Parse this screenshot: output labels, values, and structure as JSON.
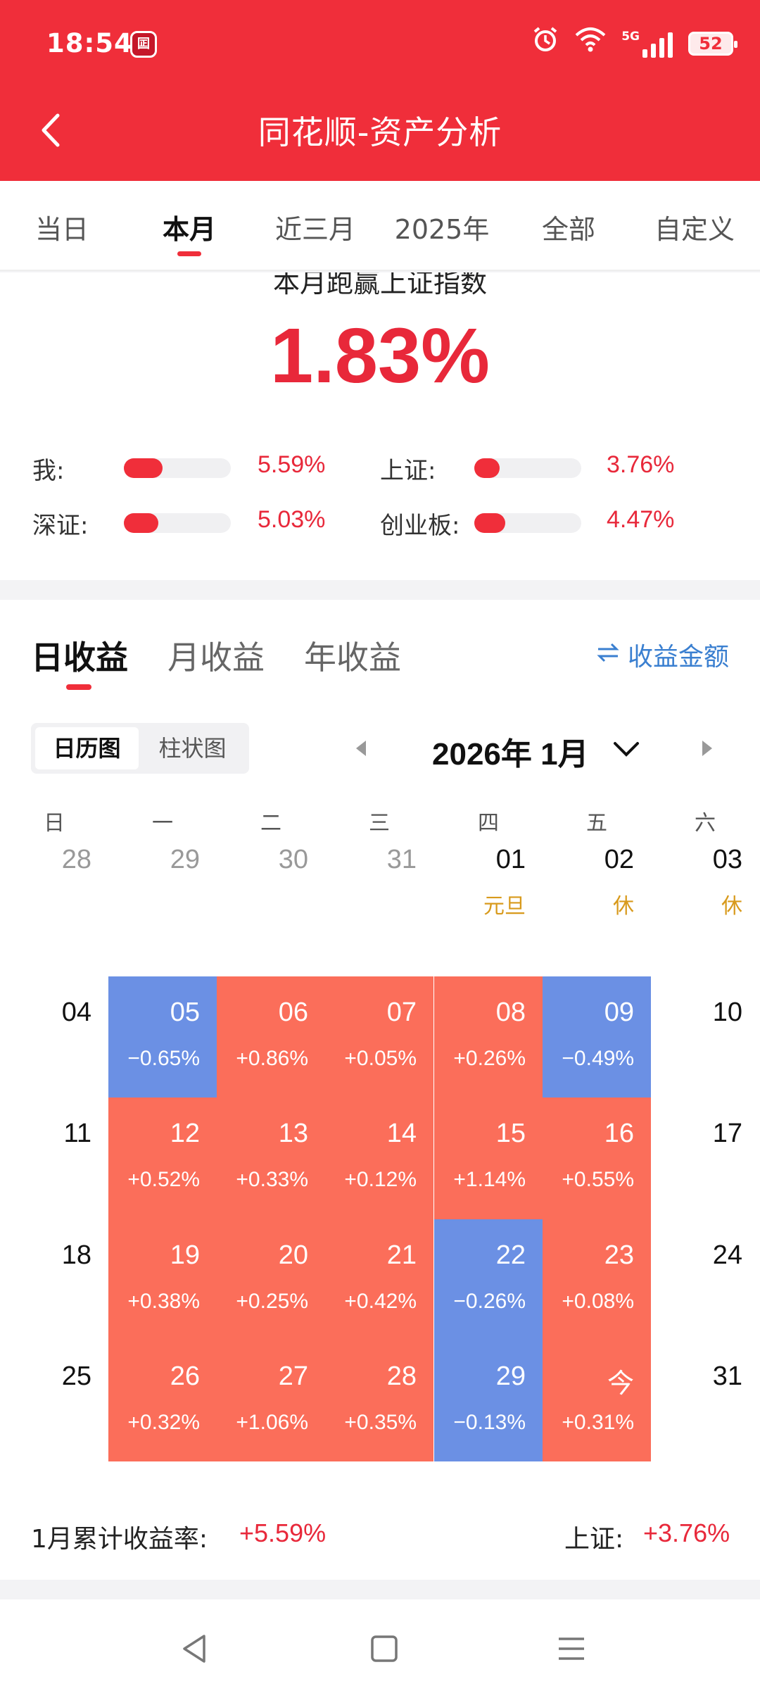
{
  "status_bar": {
    "time": "18:54",
    "app_icon_glyph": "囸",
    "network": "5G",
    "battery": "52"
  },
  "nav": {
    "title": "同花顺-资产分析"
  },
  "period_tabs": [
    {
      "label": "当日",
      "active": false
    },
    {
      "label": "本月",
      "active": true
    },
    {
      "label": "近三月",
      "active": false
    },
    {
      "label": "2025年",
      "active": false
    },
    {
      "label": "全部",
      "active": false
    },
    {
      "label": "自定义",
      "active": false
    }
  ],
  "comparison": {
    "subtitle": "本月跑赢上证指数",
    "value": "1.83%",
    "rows": [
      {
        "label": "我:",
        "value": "5.59%",
        "level": 0.36
      },
      {
        "label": "上证:",
        "value": "3.76%",
        "level": 0.24
      },
      {
        "label": "深证:",
        "value": "5.03%",
        "level": 0.32
      },
      {
        "label": "创业板:",
        "value": "4.47%",
        "level": 0.29
      }
    ]
  },
  "returns": {
    "tabs": [
      {
        "label": "日收益",
        "active": true
      },
      {
        "label": "月收益",
        "active": false
      },
      {
        "label": "年收益",
        "active": false
      }
    ],
    "amount_toggle": "收益金额",
    "view_switch": {
      "calendar": "日历图",
      "bar": "柱状图"
    },
    "month_label": "2026年 1月",
    "weekdays": [
      "日",
      "一",
      "二",
      "三",
      "四",
      "五",
      "六"
    ],
    "weeks": [
      [
        {
          "day": "28",
          "muted": true
        },
        {
          "day": "29",
          "muted": true
        },
        {
          "day": "30",
          "muted": true
        },
        {
          "day": "31",
          "muted": true
        },
        {
          "day": "01",
          "note": "元旦"
        },
        {
          "day": "02",
          "note": "休"
        },
        {
          "day": "03",
          "note": "休"
        }
      ],
      [
        {
          "day": "04"
        },
        {
          "day": "05",
          "ret": "−0.65%",
          "dir": "down"
        },
        {
          "day": "06",
          "ret": "+0.86%",
          "dir": "up"
        },
        {
          "day": "07",
          "ret": "+0.05%",
          "dir": "up"
        },
        {
          "day": "08",
          "ret": "+0.26%",
          "dir": "up"
        },
        {
          "day": "09",
          "ret": "−0.49%",
          "dir": "down"
        },
        {
          "day": "10"
        }
      ],
      [
        {
          "day": "11"
        },
        {
          "day": "12",
          "ret": "+0.52%",
          "dir": "up"
        },
        {
          "day": "13",
          "ret": "+0.33%",
          "dir": "up"
        },
        {
          "day": "14",
          "ret": "+0.12%",
          "dir": "up"
        },
        {
          "day": "15",
          "ret": "+1.14%",
          "dir": "up"
        },
        {
          "day": "16",
          "ret": "+0.55%",
          "dir": "up"
        },
        {
          "day": "17"
        }
      ],
      [
        {
          "day": "18"
        },
        {
          "day": "19",
          "ret": "+0.38%",
          "dir": "up"
        },
        {
          "day": "20",
          "ret": "+0.25%",
          "dir": "up"
        },
        {
          "day": "21",
          "ret": "+0.42%",
          "dir": "up"
        },
        {
          "day": "22",
          "ret": "−0.26%",
          "dir": "down"
        },
        {
          "day": "23",
          "ret": "+0.08%",
          "dir": "up"
        },
        {
          "day": "24"
        }
      ],
      [
        {
          "day": "25"
        },
        {
          "day": "26",
          "ret": "+0.32%",
          "dir": "up"
        },
        {
          "day": "27",
          "ret": "+1.06%",
          "dir": "up"
        },
        {
          "day": "28",
          "ret": "+0.35%",
          "dir": "up"
        },
        {
          "day": "29",
          "ret": "−0.13%",
          "dir": "down"
        },
        {
          "day": "今",
          "ret": "+0.31%",
          "dir": "up"
        },
        {
          "day": "31"
        }
      ]
    ],
    "summary": {
      "left_label": "1月累计收益率:",
      "left_value": "+5.59%",
      "right_label": "上证:",
      "right_value": "+3.76%"
    }
  },
  "colors": {
    "brand_red": "#f02e3a",
    "gain_cell": "#fb6e5a",
    "loss_cell": "#6b90e4",
    "link_blue": "#3a7fd0",
    "holiday_note": "#d89a1c"
  },
  "icons": {
    "back": "back-arrow-icon",
    "swap": "swap-arrows-icon",
    "month_prev": "caret-left-icon",
    "month_next": "caret-right-icon",
    "dropdown": "chevron-down-icon",
    "sys_back": "triangle-back-icon",
    "sys_home": "square-home-icon",
    "sys_menu": "menu-lines-icon"
  }
}
